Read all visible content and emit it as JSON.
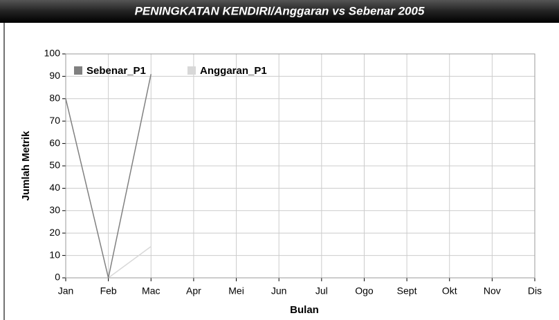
{
  "chart_data": {
    "type": "line",
    "title": "PENINGKATAN KENDIRI/Anggaran vs Sebenar 2005",
    "x_label": "Bulan",
    "y_label": "Jumlah Metrik",
    "categories": [
      "Jan",
      "Feb",
      "Mac",
      "Apr",
      "Mei",
      "Jun",
      "Jul",
      "Ogo",
      "Sept",
      "Okt",
      "Nov",
      "Dis"
    ],
    "series": [
      {
        "name": "Sebenar_P1",
        "color": "#808080",
        "values": [
          80,
          0,
          91,
          null,
          null,
          null,
          null,
          null,
          null,
          null,
          null,
          null
        ]
      },
      {
        "name": "Anggaran_P1",
        "color": "#d8d8d8",
        "values": [
          null,
          0,
          14,
          null,
          null,
          null,
          null,
          null,
          null,
          null,
          null,
          null
        ]
      }
    ],
    "ylim": [
      0,
      100
    ],
    "yticks": [
      0,
      10,
      20,
      30,
      40,
      50,
      60,
      70,
      80,
      90,
      100
    ],
    "grid": true,
    "legend": "top-left"
  }
}
